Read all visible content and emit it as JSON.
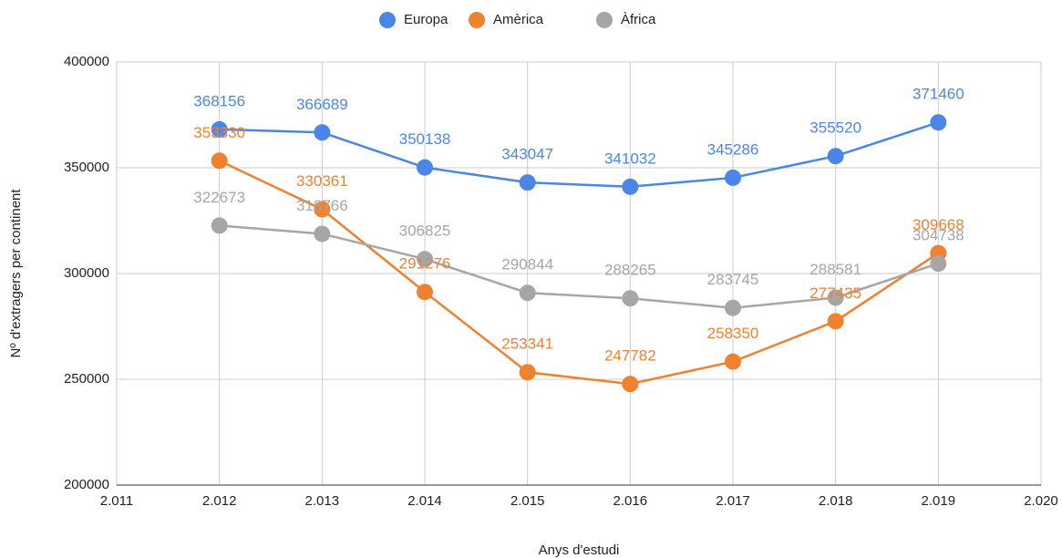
{
  "chart_data": {
    "type": "line",
    "x": [
      2012,
      2013,
      2014,
      2015,
      2016,
      2017,
      2018,
      2019
    ],
    "series": [
      {
        "name": "Europa",
        "color": "#4a86e8",
        "values": [
          368156,
          366689,
          350138,
          343047,
          341032,
          345286,
          355520,
          371460
        ]
      },
      {
        "name": "Amèrica",
        "color": "#f0812f",
        "values": [
          353330,
          330361,
          291276,
          253341,
          247782,
          258350,
          277435,
          309668
        ]
      },
      {
        "name": "Àfrica",
        "color": "#a6a6a6",
        "values": [
          322673,
          318766,
          306825,
          290844,
          288265,
          283745,
          288581,
          304738
        ]
      }
    ],
    "xlabel": "Anys d'estudi",
    "ylabel": "Nº d'extragers per continent",
    "xlim": [
      2011,
      2020
    ],
    "xticks": [
      {
        "value": 2011,
        "label": "2.011"
      },
      {
        "value": 2012,
        "label": "2.012"
      },
      {
        "value": 2013,
        "label": "2.013"
      },
      {
        "value": 2014,
        "label": "2.014"
      },
      {
        "value": 2015,
        "label": "2.015"
      },
      {
        "value": 2016,
        "label": "2.016"
      },
      {
        "value": 2017,
        "label": "2.017"
      },
      {
        "value": 2018,
        "label": "2.018"
      },
      {
        "value": 2019,
        "label": "2.019"
      },
      {
        "value": 2020,
        "label": "2.020"
      }
    ],
    "ylim": [
      200000,
      400000
    ],
    "yticks": [
      200000,
      250000,
      300000,
      350000,
      400000
    ],
    "grid": true,
    "legend": "top"
  }
}
